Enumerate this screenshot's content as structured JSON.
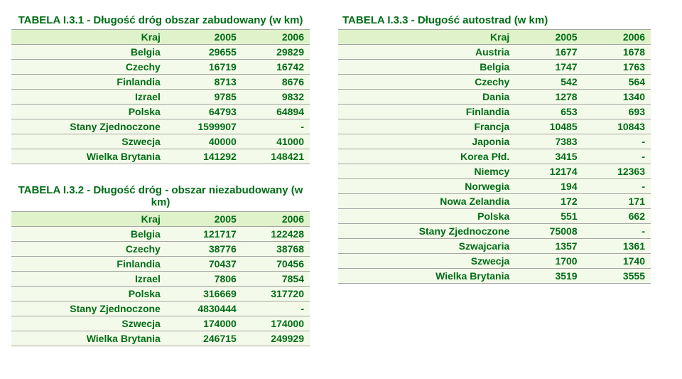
{
  "style": {
    "accent_color": "#006d16",
    "header_bg": "#dff2ca",
    "row_bg": "#f4fae9",
    "border_color": "#a5a5a5",
    "font_family": "Verdana",
    "font_size_caption": 15,
    "font_size_cell": 14
  },
  "table1": {
    "caption": "TABELA I.3.1 - Długość dróg obszar zabudowany (w km)",
    "columns": [
      "Kraj",
      "2005",
      "2006"
    ],
    "rows": [
      [
        "Belgia",
        "29655",
        "29829"
      ],
      [
        "Czechy",
        "16719",
        "16742"
      ],
      [
        "Finlandia",
        "8713",
        "8676"
      ],
      [
        "Izrael",
        "9785",
        "9832"
      ],
      [
        "Polska",
        "64793",
        "64894"
      ],
      [
        "Stany Zjednoczone",
        "1599907",
        "-"
      ],
      [
        "Szwecja",
        "40000",
        "41000"
      ],
      [
        "Wielka Brytania",
        "141292",
        "148421"
      ]
    ]
  },
  "table2": {
    "caption": "TABELA I.3.2 - Długość dróg - obszar niezabudowany (w km)",
    "columns": [
      "Kraj",
      "2005",
      "2006"
    ],
    "rows": [
      [
        "Belgia",
        "121717",
        "122428"
      ],
      [
        "Czechy",
        "38776",
        "38768"
      ],
      [
        "Finlandia",
        "70437",
        "70456"
      ],
      [
        "Izrael",
        "7806",
        "7854"
      ],
      [
        "Polska",
        "316669",
        "317720"
      ],
      [
        "Stany Zjednoczone",
        "4830444",
        "-"
      ],
      [
        "Szwecja",
        "174000",
        "174000"
      ],
      [
        "Wielka Brytania",
        "246715",
        "249929"
      ]
    ]
  },
  "table3": {
    "caption": "TABELA I.3.3 - Długość autostrad (w km)",
    "columns": [
      "Kraj",
      "2005",
      "2006"
    ],
    "rows": [
      [
        "Austria",
        "1677",
        "1678"
      ],
      [
        "Belgia",
        "1747",
        "1763"
      ],
      [
        "Czechy",
        "542",
        "564"
      ],
      [
        "Dania",
        "1278",
        "1340"
      ],
      [
        "Finlandia",
        "653",
        "693"
      ],
      [
        "Francja",
        "10485",
        "10843"
      ],
      [
        "Japonia",
        "7383",
        "-"
      ],
      [
        "Korea Płd.",
        "3415",
        "-"
      ],
      [
        "Niemcy",
        "12174",
        "12363"
      ],
      [
        "Norwegia",
        "194",
        "-"
      ],
      [
        "Nowa Zelandia",
        "172",
        "171"
      ],
      [
        "Polska",
        "551",
        "662"
      ],
      [
        "Stany Zjednoczone",
        "75008",
        "-"
      ],
      [
        "Szwajcaria",
        "1357",
        "1361"
      ],
      [
        "Szwecja",
        "1700",
        "1740"
      ],
      [
        "Wielka Brytania",
        "3519",
        "3555"
      ]
    ]
  }
}
